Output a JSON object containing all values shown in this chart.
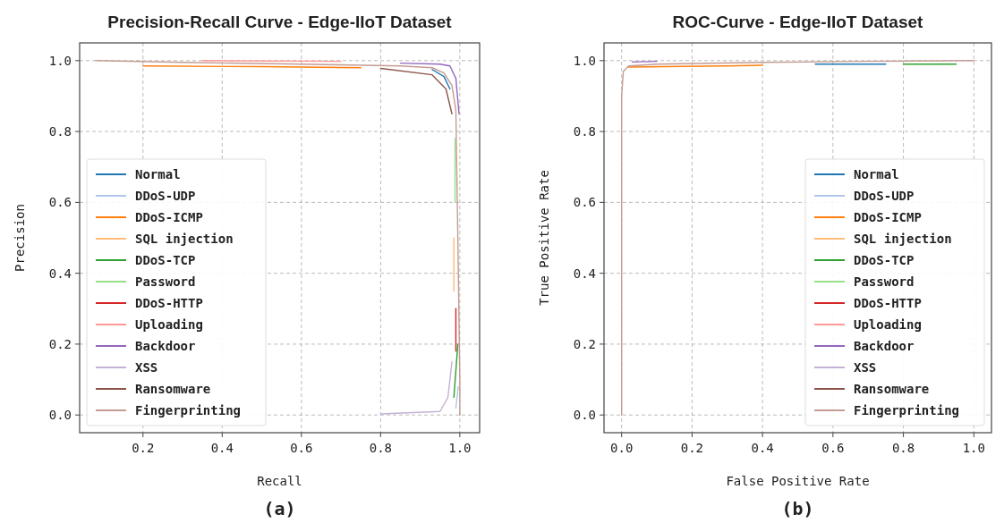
{
  "chart_data": [
    {
      "type": "line",
      "title": "Precision-Recall Curve - Edge-IIoT Dataset",
      "xlabel": "Recall",
      "ylabel": "Precision",
      "xlim": [
        0.04,
        1.05
      ],
      "ylim": [
        -0.05,
        1.05
      ],
      "xticks": [
        {
          "value": 0.2,
          "label": "0.2"
        },
        {
          "value": 0.4,
          "label": "0.4"
        },
        {
          "value": 0.6,
          "label": "0.6"
        },
        {
          "value": 0.8,
          "label": "0.8"
        },
        {
          "value": 1.0,
          "label": "1.0"
        }
      ],
      "yticks": [
        {
          "value": 0.0,
          "label": "0.0"
        },
        {
          "value": 0.2,
          "label": "0.2"
        },
        {
          "value": 0.4,
          "label": "0.4"
        },
        {
          "value": 0.6,
          "label": "0.6"
        },
        {
          "value": 0.8,
          "label": "0.8"
        },
        {
          "value": 1.0,
          "label": "1.0"
        }
      ],
      "grid": true,
      "legend": "bottom left",
      "annotations": [
        "(a)"
      ],
      "series": [
        {
          "name": "Normal",
          "color": "#1f77b4",
          "x": [
            0.93,
            0.96,
            0.975
          ],
          "values": [
            0.975,
            0.955,
            0.92
          ]
        },
        {
          "name": "DDoS-UDP",
          "color": "#aec7e8",
          "x": [
            0.996,
            0.99
          ],
          "values": [
            0.08,
            0.02
          ]
        },
        {
          "name": "DDoS-ICMP",
          "color": "#ff7f0e",
          "x": [
            0.2,
            0.5,
            0.75
          ],
          "values": [
            0.985,
            0.983,
            0.98
          ]
        },
        {
          "name": "SQL injection",
          "color": "#ffbb78",
          "x": [
            0.985,
            0.985
          ],
          "values": [
            0.5,
            0.35
          ]
        },
        {
          "name": "DDoS-TCP",
          "color": "#2ca02c",
          "x": [
            0.995,
            0.985
          ],
          "values": [
            0.2,
            0.05
          ]
        },
        {
          "name": "Password",
          "color": "#98df8a",
          "x": [
            0.988,
            0.988
          ],
          "values": [
            0.78,
            0.6
          ]
        },
        {
          "name": "DDoS-HTTP",
          "color": "#d62728",
          "x": [
            0.99,
            0.99
          ],
          "values": [
            0.3,
            0.18
          ]
        },
        {
          "name": "Uploading",
          "color": "#ff9896",
          "x": [
            0.35,
            0.7
          ],
          "values": [
            1.0,
            0.998
          ]
        },
        {
          "name": "Backdoor",
          "color": "#9467bd",
          "x": [
            0.85,
            0.95,
            0.975,
            0.99,
            0.998
          ],
          "values": [
            0.993,
            0.99,
            0.985,
            0.95,
            0.85
          ]
        },
        {
          "name": "XSS",
          "color": "#c5b0d5",
          "x": [
            0.8,
            0.95,
            0.97,
            0.98
          ],
          "values": [
            0.003,
            0.01,
            0.05,
            0.15
          ]
        },
        {
          "name": "Ransomware",
          "color": "#8c564b",
          "x": [
            0.8,
            0.93,
            0.965,
            0.98
          ],
          "values": [
            0.978,
            0.96,
            0.92,
            0.85
          ]
        },
        {
          "name": "Fingerprinting",
          "color": "#c49c94",
          "x": [
            0.08,
            0.3,
            0.6,
            0.85,
            0.93,
            0.96,
            0.98,
            0.99,
            0.995,
            1.0,
            1.0
          ],
          "values": [
            1.0,
            0.995,
            0.99,
            0.985,
            0.98,
            0.965,
            0.93,
            0.86,
            0.5,
            0.1,
            0.0
          ]
        }
      ]
    },
    {
      "type": "line",
      "title": "ROC-Curve - Edge-IIoT Dataset",
      "xlabel": "False Positive Rate",
      "ylabel": "True Positive Rate",
      "xlim": [
        -0.05,
        1.05
      ],
      "ylim": [
        -0.05,
        1.05
      ],
      "xticks": [
        {
          "value": 0.0,
          "label": "0.0"
        },
        {
          "value": 0.2,
          "label": "0.2"
        },
        {
          "value": 0.4,
          "label": "0.4"
        },
        {
          "value": 0.6,
          "label": "0.6"
        },
        {
          "value": 0.8,
          "label": "0.8"
        },
        {
          "value": 1.0,
          "label": "1.0"
        }
      ],
      "yticks": [
        {
          "value": 0.0,
          "label": "0.0"
        },
        {
          "value": 0.2,
          "label": "0.2"
        },
        {
          "value": 0.4,
          "label": "0.4"
        },
        {
          "value": 0.6,
          "label": "0.6"
        },
        {
          "value": 0.8,
          "label": "0.8"
        },
        {
          "value": 1.0,
          "label": "1.0"
        }
      ],
      "grid": true,
      "legend": "bottom right",
      "annotations": [
        "(b)"
      ],
      "series": [
        {
          "name": "Normal",
          "color": "#1f77b4",
          "x": [
            0.55,
            0.75
          ],
          "values": [
            0.99,
            0.99
          ]
        },
        {
          "name": "DDoS-UDP",
          "color": "#aec7e8"
        },
        {
          "name": "DDoS-ICMP",
          "color": "#ff7f0e",
          "x": [
            0.02,
            0.3,
            0.4
          ],
          "values": [
            0.982,
            0.985,
            0.987
          ]
        },
        {
          "name": "SQL injection",
          "color": "#ffbb78"
        },
        {
          "name": "DDoS-TCP",
          "color": "#2ca02c",
          "x": [
            0.8,
            0.95
          ],
          "values": [
            0.99,
            0.99
          ]
        },
        {
          "name": "Password",
          "color": "#98df8a"
        },
        {
          "name": "DDoS-HTTP",
          "color": "#d62728"
        },
        {
          "name": "Uploading",
          "color": "#ff9896"
        },
        {
          "name": "Backdoor",
          "color": "#9467bd",
          "x": [
            0.03,
            0.1
          ],
          "values": [
            0.996,
            0.998
          ]
        },
        {
          "name": "XSS",
          "color": "#c5b0d5"
        },
        {
          "name": "Ransomware",
          "color": "#8c564b"
        },
        {
          "name": "Fingerprinting",
          "color": "#c49c94",
          "x": [
            0.0,
            0.0,
            0.005,
            0.02,
            0.1,
            0.4,
            0.7,
            1.0
          ],
          "values": [
            0.0,
            0.9,
            0.97,
            0.985,
            0.99,
            0.995,
            0.998,
            1.0
          ]
        }
      ]
    }
  ]
}
